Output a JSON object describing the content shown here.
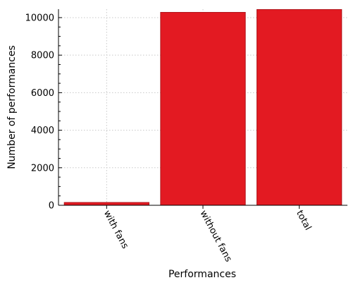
{
  "chart_data": {
    "type": "bar",
    "categories": [
      "with fans",
      "without fans",
      "total"
    ],
    "values": [
      150,
      10280,
      10430
    ],
    "xlabel": "Performances",
    "ylabel": "Number of performances",
    "ylim": [
      0,
      10450
    ],
    "yticks": [
      0,
      2000,
      4000,
      6000,
      8000,
      10000
    ],
    "grid": true,
    "bar_color": "#e31a22",
    "bar_edge_color": "#b0141a"
  }
}
